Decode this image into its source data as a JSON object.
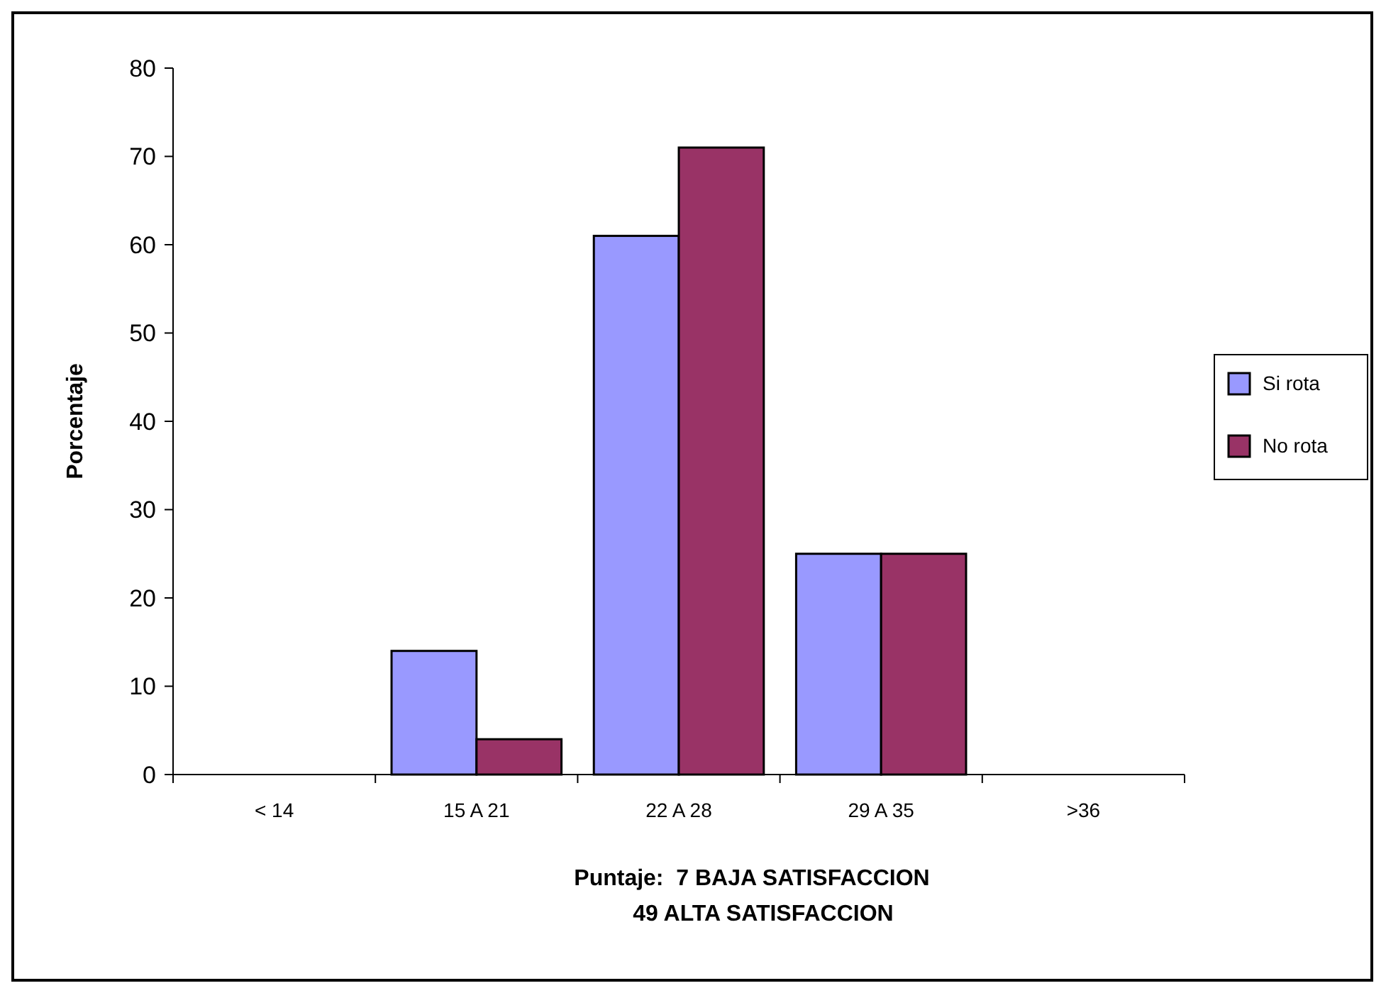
{
  "chart_data": {
    "type": "bar",
    "xlabel": "Puntaje:  7 BAJA SATISFACCION\n49 ALTA SATISFACCION",
    "ylabel": "Porcentaje",
    "categories": [
      "< 14",
      "15 A 21",
      "22 A 28",
      "29 A 35",
      ">36"
    ],
    "series": [
      {
        "name": "Si rota",
        "color": "#9999ff",
        "values": [
          0,
          14,
          61,
          25,
          0
        ]
      },
      {
        "name": "No rota",
        "color": "#993366",
        "values": [
          0,
          4,
          71,
          25,
          0
        ]
      }
    ],
    "ylim": [
      0,
      80
    ],
    "yticks": [
      0,
      10,
      20,
      30,
      40,
      50,
      60,
      70,
      80
    ],
    "grid": false,
    "legend": "right"
  }
}
